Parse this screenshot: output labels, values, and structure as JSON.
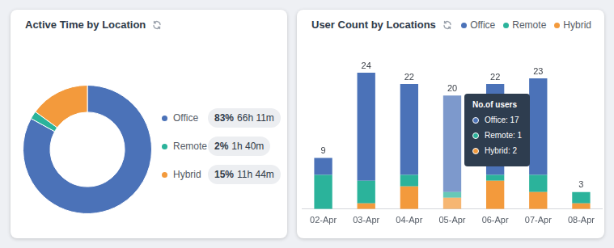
{
  "chart_data": [
    {
      "type": "doughnut",
      "title": "Active Time by Location",
      "categories": [
        "Office",
        "Remote",
        "Hybrid"
      ],
      "values": [
        83,
        2,
        15
      ],
      "value_labels": [
        "83%",
        "2%",
        "15%"
      ],
      "durations": [
        "66h 11m",
        "1h 40m",
        "11h 44m"
      ],
      "colors": [
        "#4b72b8",
        "#2bb39b",
        "#f39a3c"
      ],
      "legend": "right"
    },
    {
      "type": "bar",
      "title": "User Count by Locations",
      "stacked": true,
      "categories": [
        "02-Apr",
        "03-Apr",
        "04-Apr",
        "05-Apr",
        "06-Apr",
        "07-Apr",
        "08-Apr"
      ],
      "series": [
        {
          "name": "Office",
          "color": "#4b72b8",
          "values": [
            3,
            19,
            16,
            17,
            16,
            17,
            0
          ]
        },
        {
          "name": "Remote",
          "color": "#2bb39b",
          "values": [
            6,
            4,
            2,
            1,
            1,
            3,
            2
          ]
        },
        {
          "name": "Hybrid",
          "color": "#f39a3c",
          "values": [
            0,
            1,
            4,
            2,
            5,
            3,
            1
          ]
        }
      ],
      "totals": [
        9,
        24,
        22,
        20,
        22,
        23,
        3
      ],
      "ylim": [
        0,
        24
      ],
      "tick_labels": "x",
      "grid": false,
      "legend": "top right",
      "annotation": {
        "category": "05-Apr",
        "title": "No.of users",
        "items": [
          "Office: 17",
          "Remote: 1",
          "Hybrid: 2"
        ]
      }
    }
  ]
}
